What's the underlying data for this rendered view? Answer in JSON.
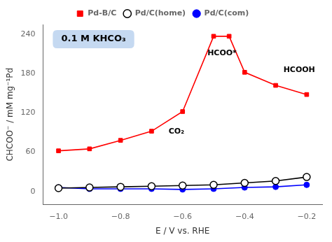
{
  "chart_data": {
    "type": "line",
    "xlabel": "E / V vs. RHE",
    "ylabel": "CHCOO⁻ / mM mg⁻¹Pd",
    "xlim": [
      -1.05,
      -0.15
    ],
    "ylim": [
      -20,
      255
    ],
    "xticks": [
      {
        "value": -1.0,
        "label": "−1.0"
      },
      {
        "value": -0.8,
        "label": "−0.8"
      },
      {
        "value": -0.6,
        "label": "−0.6"
      },
      {
        "value": -0.4,
        "label": "−0.4"
      },
      {
        "value": -0.2,
        "label": "−0.2"
      }
    ],
    "yticks": [
      0,
      60,
      120,
      180,
      240
    ],
    "grid": false,
    "legend": "top",
    "series": [
      {
        "name": "Pd-B/C",
        "color": "red",
        "marker": "square",
        "x": [
          -1.0,
          -0.9,
          -0.8,
          -0.7,
          -0.6,
          -0.5,
          -0.45,
          -0.4,
          -0.3,
          -0.2
        ],
        "values": [
          62,
          65,
          78,
          92,
          122,
          237,
          237,
          182,
          162,
          148
        ]
      },
      {
        "name": "Pd/C(home)",
        "color": "black",
        "marker": "open circle",
        "x": [
          -1.0,
          -0.9,
          -0.8,
          -0.7,
          -0.6,
          -0.5,
          -0.4,
          -0.3,
          -0.2
        ],
        "values": [
          5,
          6,
          7,
          8,
          9,
          10,
          13,
          16,
          22
        ]
      },
      {
        "name": "Pd/C(com)",
        "color": "blue",
        "marker": "circle",
        "x": [
          -1.0,
          -0.9,
          -0.8,
          -0.7,
          -0.6,
          -0.5,
          -0.4,
          -0.3,
          -0.2
        ],
        "values": [
          6,
          4,
          4,
          4,
          3,
          4,
          6,
          7,
          10
        ]
      }
    ],
    "annotations": [
      {
        "text": "0.1 M KHCO₃",
        "color": "#c5d9f1"
      },
      {
        "text": "CO₂",
        "x": -0.645,
        "y": 88
      },
      {
        "text": "HCOO*",
        "x": -0.52,
        "y": 208
      },
      {
        "text": "HCOOH",
        "x": -0.275,
        "y": 182
      }
    ]
  }
}
